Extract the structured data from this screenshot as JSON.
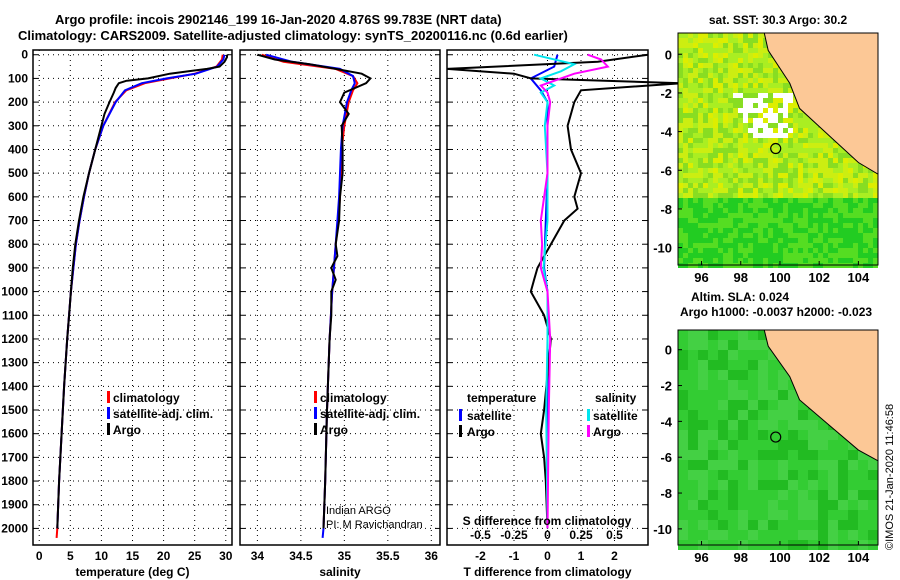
{
  "header": {
    "title_line1": "Argo profile: incois 2902146_199 16-Jan-2020 4.876S 99.783E (NRT data)",
    "title_line2": "Climatology: CARS2009. Satellite-adjusted climatology: synTS_20200116.nc (0.6d earlier)"
  },
  "colors": {
    "climatology": "#ff0000",
    "satellite": "#0000ff",
    "argo": "#000000",
    "sal_satellite": "#00e5ee",
    "sal_argo": "#ff00ff",
    "land": "#fcc896"
  },
  "chart_data": [
    {
      "type": "line",
      "id": "temperature",
      "xlabel": "temperature (deg C)",
      "xlim": [
        -1,
        31
      ],
      "ylim": [
        2070,
        -20
      ],
      "xticks": [
        0,
        5,
        10,
        15,
        20,
        25,
        30
      ],
      "yticks": [
        0,
        100,
        200,
        300,
        400,
        500,
        600,
        700,
        800,
        900,
        1000,
        1100,
        1200,
        1300,
        1400,
        1500,
        1600,
        1700,
        1800,
        1900,
        2000
      ],
      "legend": [
        "climatology",
        "satellite-adj. clim.",
        "Argo"
      ],
      "series": [
        {
          "name": "climatology",
          "depth": [
            0,
            20,
            50,
            80,
            100,
            120,
            150,
            200,
            300,
            400,
            500,
            600,
            700,
            800,
            900,
            1000,
            1200,
            1400,
            1600,
            1800,
            2000,
            2040
          ],
          "values": [
            29.5,
            29.4,
            28.5,
            25,
            21,
            17,
            14,
            12.2,
            10.3,
            9,
            8,
            7.2,
            6.5,
            5.9,
            5.5,
            5.1,
            4.5,
            4,
            3.6,
            3.2,
            2.9,
            2.8
          ]
        },
        {
          "name": "satellite-adj. clim.",
          "depth": [
            0,
            20,
            50,
            80,
            100,
            120,
            150,
            200,
            300,
            400,
            500,
            600,
            700,
            800,
            900,
            1000,
            1200,
            1400,
            1600,
            1800,
            2000
          ],
          "values": [
            29.8,
            29.6,
            28.6,
            25.2,
            20.5,
            16.5,
            13.8,
            12.3,
            10.3,
            9,
            8,
            7.2,
            6.5,
            5.9,
            5.5,
            5.1,
            4.5,
            4,
            3.6,
            3.2,
            2.9
          ]
        },
        {
          "name": "Argo",
          "depth": [
            0,
            10,
            30,
            50,
            60,
            70,
            80,
            100,
            110,
            120,
            140,
            160,
            200,
            250,
            300,
            400,
            500,
            600,
            700,
            800,
            900,
            1000,
            1100,
            1200,
            1400,
            1600,
            1800,
            2000
          ],
          "values": [
            30.2,
            30.2,
            29.8,
            29,
            27,
            24,
            21,
            17.5,
            14,
            12.8,
            12.3,
            12,
            11.3,
            10.5,
            10,
            9,
            8,
            7.1,
            6.4,
            5.8,
            5.4,
            5.1,
            4.8,
            4.5,
            4,
            3.6,
            3.2,
            2.9
          ]
        }
      ]
    },
    {
      "type": "line",
      "id": "salinity",
      "xlabel": "salinity",
      "xlim": [
        33.8,
        36.1
      ],
      "ylim": [
        2070,
        -20
      ],
      "xticks": [
        34,
        34.5,
        35,
        35.5,
        36
      ],
      "xticklabels": [
        "34",
        "34.5",
        "35",
        "35.5",
        "36"
      ],
      "legend": [
        "climatology",
        "satellite-adj. clim.",
        "Argo"
      ],
      "annotation": [
        "Indian ARGO",
        "PI: M Ravichandran"
      ],
      "series": [
        {
          "name": "climatology",
          "depth": [
            0,
            30,
            60,
            90,
            120,
            150,
            200,
            300,
            400,
            500,
            600,
            700,
            800,
            1000,
            1200,
            1500,
            1800,
            2000
          ],
          "values": [
            34.05,
            34.3,
            34.9,
            35.1,
            35.15,
            35.1,
            35.05,
            35.0,
            34.97,
            34.96,
            34.95,
            34.93,
            34.9,
            34.86,
            34.83,
            34.8,
            34.78,
            34.76
          ]
        },
        {
          "name": "satellite-adj. clim.",
          "depth": [
            0,
            30,
            60,
            90,
            120,
            150,
            200,
            300,
            400,
            500,
            600,
            700,
            800,
            1000,
            1200,
            1500,
            1800,
            2000,
            2040
          ],
          "values": [
            34.1,
            34.4,
            34.95,
            35.1,
            35.12,
            35.08,
            35.03,
            34.98,
            34.96,
            34.95,
            34.94,
            34.92,
            34.9,
            34.86,
            34.83,
            34.8,
            34.78,
            34.76,
            34.75
          ]
        },
        {
          "name": "Argo",
          "depth": [
            0,
            20,
            40,
            60,
            80,
            100,
            120,
            160,
            200,
            250,
            300,
            400,
            500,
            600,
            700,
            800,
            850,
            900,
            950,
            1000,
            1100,
            1200,
            1500,
            1800,
            2000
          ],
          "values": [
            34.0,
            34.2,
            34.6,
            34.9,
            35.2,
            35.3,
            35.25,
            35.0,
            34.95,
            35.05,
            34.97,
            34.98,
            34.98,
            34.95,
            34.94,
            34.9,
            34.92,
            34.85,
            34.9,
            34.85,
            34.85,
            34.83,
            34.8,
            34.78,
            34.76
          ]
        }
      ]
    },
    {
      "type": "line",
      "id": "differences",
      "xlabel": "T difference from climatology",
      "x2label": "S difference from climatology",
      "xlim": [
        -3,
        3
      ],
      "ylim": [
        2070,
        -20
      ],
      "xticks": [
        -2,
        -1,
        0,
        1,
        2
      ],
      "s_xticks": [
        -0.5,
        -0.25,
        0,
        0.25,
        0.5
      ],
      "s_xticklabels": [
        "-0.5",
        "-0.25",
        "0",
        "0.25",
        "0.5"
      ],
      "legend_temperature": {
        "title": "temperature",
        "items": [
          "satellite",
          "Argo"
        ]
      },
      "legend_salinity": {
        "title": "salinity",
        "items": [
          "satellite",
          "Argo"
        ]
      },
      "series": [
        {
          "name": "temperature satellite",
          "axis": "T",
          "depth": [
            0,
            50,
            100,
            150,
            200,
            300,
            500,
            700,
            900,
            1000,
            1200,
            1500,
            2000
          ],
          "values": [
            0.3,
            0.2,
            -0.5,
            -0.2,
            0,
            0,
            0,
            -0.05,
            -0.1,
            0,
            0,
            0,
            0
          ]
        },
        {
          "name": "temperature Argo",
          "axis": "T",
          "depth": [
            0,
            30,
            60,
            80,
            100,
            120,
            150,
            200,
            250,
            300,
            400,
            500,
            600,
            650,
            700,
            800,
            900,
            950,
            1000,
            1100,
            1200,
            1500,
            1600,
            1700,
            1800,
            2000
          ],
          "values": [
            3,
            1.5,
            -3,
            -1,
            -0.5,
            4,
            1,
            0.8,
            0.7,
            0.6,
            0.7,
            1,
            0.8,
            0.9,
            0.5,
            0.1,
            -0.3,
            -0.4,
            -0.5,
            -0.1,
            0.1,
            -0.1,
            -0.2,
            -0.1,
            -0.05,
            0
          ]
        },
        {
          "name": "salinity satellite",
          "axis": "S",
          "depth": [
            0,
            40,
            70,
            100,
            130,
            160,
            200,
            300,
            500,
            700,
            900,
            1000,
            1200,
            1500,
            2000
          ],
          "values": [
            -0.1,
            0.2,
            0.1,
            -0.05,
            0.05,
            -0.05,
            0,
            -0.02,
            0,
            0,
            -0.03,
            0,
            0,
            -0.01,
            0
          ]
        },
        {
          "name": "salinity Argo",
          "axis": "S",
          "depth": [
            0,
            20,
            50,
            80,
            100,
            130,
            160,
            200,
            300,
            500,
            700,
            800,
            900,
            1000,
            1200,
            1500,
            2000
          ],
          "values": [
            0.3,
            0.4,
            0.45,
            0.2,
            0.1,
            -0.05,
            0,
            0.02,
            0,
            0,
            -0.05,
            -0.04,
            -0.05,
            0,
            0.02,
            0.01,
            0
          ]
        }
      ]
    },
    {
      "type": "heatmap",
      "id": "sst-map",
      "title": "sat. SST: 30.3 Argo: 30.2",
      "xlim": [
        94.8,
        105
      ],
      "ylim": [
        -10.9,
        1.1
      ],
      "xticks": [
        96,
        98,
        100,
        102,
        104
      ],
      "yticks": [
        0,
        -2,
        -4,
        -6,
        -8,
        -10
      ],
      "marker": {
        "lon": 99.783,
        "lat": -4.876
      }
    },
    {
      "type": "heatmap",
      "id": "sla-map",
      "title": "Altim. SLA: 0.024",
      "subtitle": "Argo h1000: -0.0037 h2000: -0.023",
      "xlim": [
        94.8,
        105
      ],
      "ylim": [
        -10.9,
        1.1
      ],
      "xticks": [
        96,
        98,
        100,
        102,
        104
      ],
      "yticks": [
        0,
        -2,
        -4,
        -6,
        -8,
        -10
      ],
      "marker": {
        "lon": 99.783,
        "lat": -4.876
      }
    }
  ],
  "credit": "©IMOS 21-Jan-2020 11:46:58"
}
